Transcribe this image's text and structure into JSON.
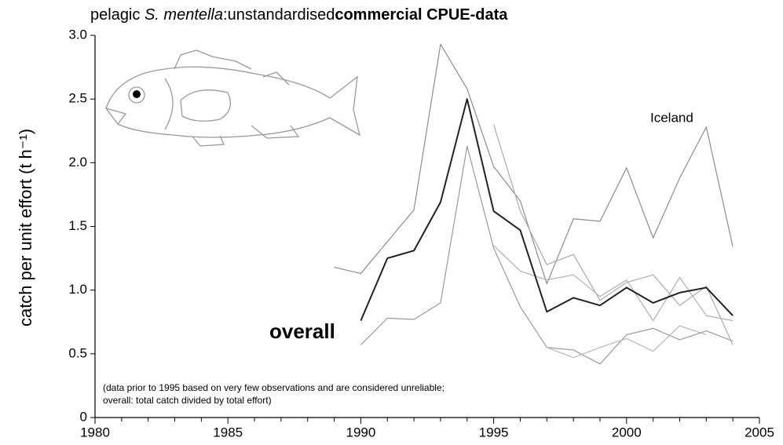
{
  "chart_data": {
    "type": "line",
    "title": [
      "pelagic",
      "S. mentella",
      ":unstandardised",
      "commercial CPUE-data"
    ],
    "ylabel": "catch per unit effort  (t h⁻¹)",
    "annotations": [
      "(data prior to 1995 based on very few observations and are considered unreliable;",
      "overall: total catch divided by total effort)"
    ],
    "x": [
      1989,
      1990,
      1991,
      1992,
      1993,
      1994,
      1995,
      1996,
      1997,
      1998,
      1999,
      2000,
      2001,
      2002,
      2003,
      2004
    ],
    "series": [
      {
        "name": "Iceland",
        "color": "#8c8c8c",
        "values": [
          1.18,
          1.13,
          1.38,
          1.63,
          2.93,
          2.58,
          1.97,
          1.7,
          1.05,
          1.56,
          1.54,
          1.96,
          1.41,
          1.88,
          2.28,
          1.34
        ]
      },
      {
        "color": "#9a9a9a",
        "values": [
          null,
          0.57,
          0.78,
          0.77,
          0.9,
          2.13,
          1.33,
          0.87,
          0.55,
          0.53,
          0.42,
          0.65,
          0.7,
          0.61,
          0.68,
          0.6
        ]
      },
      {
        "color": "#aaaaaa",
        "values": [
          null,
          null,
          null,
          null,
          null,
          null,
          2.3,
          1.62,
          1.2,
          1.28,
          0.92,
          1.06,
          1.12,
          0.88,
          1.03,
          0.57
        ]
      },
      {
        "color": "#b0b0b0",
        "values": [
          null,
          null,
          null,
          null,
          null,
          null,
          1.35,
          1.15,
          1.08,
          1.12,
          0.95,
          1.08,
          0.76,
          1.1,
          0.8,
          0.76
        ]
      },
      {
        "color": "#b8b8b8",
        "values": [
          null,
          null,
          null,
          null,
          null,
          null,
          null,
          null,
          0.55,
          0.47,
          0.55,
          0.62,
          0.52,
          0.72,
          0.65,
          null
        ]
      },
      {
        "name": "overall",
        "color": "#222222",
        "values": [
          null,
          0.76,
          1.25,
          1.31,
          1.69,
          2.5,
          1.62,
          1.47,
          0.83,
          0.94,
          0.88,
          1.02,
          0.9,
          0.98,
          1.02,
          0.8
        ]
      }
    ],
    "xlim": [
      1980,
      2005
    ],
    "xticks": [
      1980,
      1985,
      1990,
      1995,
      2000,
      2005
    ],
    "xminorticks": [
      1981,
      1982,
      1983,
      1984,
      1986,
      1987,
      1988,
      1989,
      1991,
      1992,
      1993,
      1994,
      1996,
      1997,
      1998,
      1999,
      2001,
      2002,
      2003,
      2004
    ],
    "ylim": [
      0,
      3
    ],
    "yticks": [
      0,
      0.5,
      {
        "value": 1,
        "label": "1.0"
      },
      1.5,
      {
        "value": 2,
        "label": "2.0"
      },
      2.5,
      {
        "value": 3,
        "label": "3.0"
      }
    ],
    "grid": false
  }
}
